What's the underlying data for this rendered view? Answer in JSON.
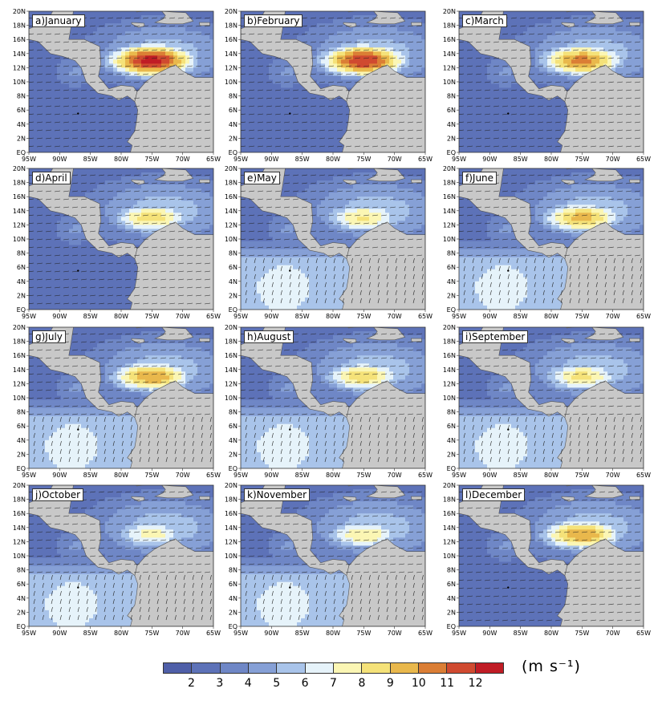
{
  "figure": {
    "panels": [
      {
        "label": "a)January",
        "jet": 12.5
      },
      {
        "label": "b)February",
        "jet": 12.0
      },
      {
        "label": "c)March",
        "jet": 10.5
      },
      {
        "label": "d)April",
        "jet": 8.6
      },
      {
        "label": "e)May",
        "jet": 8.2
      },
      {
        "label": "f)June",
        "jet": 9.5
      },
      {
        "label": "g)July",
        "jet": 10.0
      },
      {
        "label": "h)August",
        "jet": 8.8
      },
      {
        "label": "i)September",
        "jet": 8.3
      },
      {
        "label": "j)October",
        "jet": 7.5
      },
      {
        "label": "k)November",
        "jet": 8.0
      },
      {
        "label": "l)December",
        "jet": 10.0
      }
    ],
    "lat_ticks": [
      "20N",
      "18N",
      "16N",
      "14N",
      "12N",
      "10N",
      "8N",
      "6N",
      "4N",
      "2N",
      "EQ"
    ],
    "lon_ticks": [
      "95W",
      "90W",
      "85W",
      "80W",
      "75W",
      "70W",
      "65W"
    ],
    "colorbar": {
      "colors": [
        "#4f5fa8",
        "#5d72b8",
        "#6f87c6",
        "#86a0d6",
        "#a9c4ea",
        "#e6f3fa",
        "#fbf6b4",
        "#f5e279",
        "#e9b84c",
        "#db7e35",
        "#d04a30",
        "#c01c25"
      ],
      "tick_labels": [
        "2",
        "3",
        "4",
        "5",
        "6",
        "7",
        "8",
        "9",
        "10",
        "11",
        "12"
      ],
      "units": "(m s⁻¹)"
    }
  }
}
